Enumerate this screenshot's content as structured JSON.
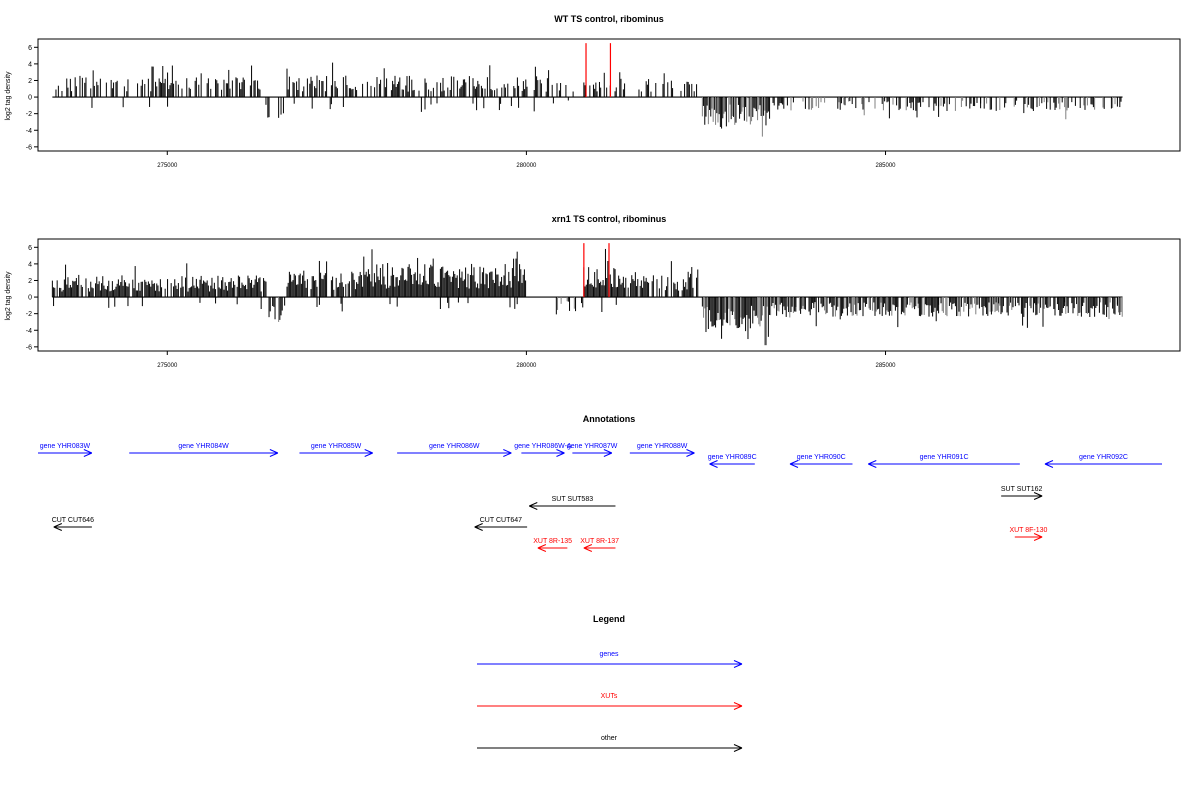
{
  "colors": {
    "gene": "#0000ff",
    "xut": "#ff0000",
    "other": "#000000",
    "bar": "#000000",
    "bar_light": "#808080",
    "highlight": "#ff0000",
    "frame": "#000000"
  },
  "chart_data": [
    {
      "type": "bar",
      "title": "WT TS control, ribominus",
      "ylabel": "log2 tag density",
      "xlim": [
        273200,
        289100
      ],
      "ylim": [
        -6.5,
        7
      ],
      "yticks": [
        -6,
        -4,
        -2,
        0,
        2,
        4,
        6
      ],
      "xticks": [
        275000,
        280000,
        285000
      ],
      "grid": false,
      "data_range": [
        273400,
        288300
      ],
      "density_note": "approximate profile; positive signal 273.4k-282.4k, negative signal 282.4k-288.3k",
      "segments": [
        {
          "from": 273400,
          "to": 276400,
          "sign": 1,
          "dens": 0.45,
          "amp": 2.4,
          "neg_dens": 0.05,
          "neg_amp": 1.8
        },
        {
          "from": 276400,
          "to": 276650,
          "sign": -1,
          "dens": 0.35,
          "amp": 2.6,
          "neg_dens": 0,
          "neg_amp": 0
        },
        {
          "from": 276650,
          "to": 280500,
          "sign": 1,
          "dens": 0.55,
          "amp": 2.6,
          "neg_dens": 0.05,
          "neg_amp": 1.8
        },
        {
          "from": 280500,
          "to": 280800,
          "sign": 1,
          "dens": 0.05,
          "amp": 1.5,
          "neg_dens": 0.05,
          "neg_amp": 1.0
        },
        {
          "from": 280800,
          "to": 281300,
          "sign": 1,
          "dens": 0.5,
          "amp": 2.6,
          "neg_dens": 0,
          "neg_amp": 0
        },
        {
          "from": 281300,
          "to": 282400,
          "sign": 1,
          "dens": 0.35,
          "amp": 2.0,
          "neg_dens": 0,
          "neg_amp": 0
        },
        {
          "from": 282450,
          "to": 283400,
          "sign": -1,
          "dens": 0.9,
          "amp": 3.6,
          "neg_dens": 0,
          "neg_amp": 0
        },
        {
          "from": 283400,
          "to": 288300,
          "sign": -1,
          "dens": 0.4,
          "amp": 1.7,
          "neg_dens": 0.03,
          "neg_amp": 1.5
        }
      ],
      "highlights": [
        {
          "x": 280830,
          "y": 6.5
        },
        {
          "x": 281170,
          "y": 6.5
        }
      ]
    },
    {
      "type": "bar",
      "title": "xrn1 TS control, ribominus",
      "ylabel": "log2 tag density",
      "xlim": [
        273200,
        289100
      ],
      "ylim": [
        -6.5,
        7
      ],
      "yticks": [
        -6,
        -4,
        -2,
        0,
        2,
        4,
        6
      ],
      "xticks": [
        275000,
        280000,
        285000
      ],
      "grid": false,
      "data_range": [
        273400,
        288300
      ],
      "density_note": "approximate profile; dense positive signal 273.4k-282.4k, dense negative signal 282.4k-288.3k",
      "segments": [
        {
          "from": 273400,
          "to": 276400,
          "sign": 1,
          "dens": 0.85,
          "amp": 2.6,
          "neg_dens": 0.03,
          "neg_amp": 1.5
        },
        {
          "from": 276400,
          "to": 276650,
          "sign": -1,
          "dens": 0.6,
          "amp": 3.2,
          "neg_dens": 0,
          "neg_amp": 0
        },
        {
          "from": 276650,
          "to": 277800,
          "sign": 1,
          "dens": 0.9,
          "amp": 3.2,
          "neg_dens": 0.08,
          "neg_amp": 2.0
        },
        {
          "from": 277800,
          "to": 280000,
          "sign": 1,
          "dens": 1.0,
          "amp": 4.0,
          "neg_dens": 0.03,
          "neg_amp": 1.5
        },
        {
          "from": 280350,
          "to": 280800,
          "sign": -1,
          "dens": 0.35,
          "amp": 2.0,
          "neg_dens": 0,
          "neg_amp": 0
        },
        {
          "from": 280800,
          "to": 281300,
          "sign": 1,
          "dens": 1.0,
          "amp": 4.5,
          "neg_dens": 0.15,
          "neg_amp": 2.0
        },
        {
          "from": 281300,
          "to": 282400,
          "sign": 1,
          "dens": 0.7,
          "amp": 2.8,
          "neg_dens": 0,
          "neg_amp": 0
        },
        {
          "from": 282450,
          "to": 283400,
          "sign": -1,
          "dens": 1.0,
          "amp": 4.2,
          "neg_dens": 0,
          "neg_amp": 0
        },
        {
          "from": 283400,
          "to": 288300,
          "sign": -1,
          "dens": 0.85,
          "amp": 2.4,
          "neg_dens": 0.05,
          "neg_amp": 1.2
        }
      ],
      "highlights": [
        {
          "x": 280800,
          "y": 6.5
        },
        {
          "x": 281150,
          "y": 6.5
        }
      ]
    }
  ],
  "annotations": {
    "title": "Annotations",
    "features": [
      {
        "label": "gene YHR083W",
        "kind": "gene",
        "strand": "+",
        "start": 273200,
        "end": 273950,
        "row": 0
      },
      {
        "label": "gene YHR084W",
        "kind": "gene",
        "strand": "+",
        "start": 274470,
        "end": 276540,
        "row": 0
      },
      {
        "label": "gene YHR085W",
        "kind": "gene",
        "strand": "+",
        "start": 276840,
        "end": 277860,
        "row": 0
      },
      {
        "label": "gene YHR086W",
        "kind": "gene",
        "strand": "+",
        "start": 278200,
        "end": 279790,
        "row": 0
      },
      {
        "label": "gene YHR086W-A",
        "kind": "gene",
        "strand": "+",
        "start": 279930,
        "end": 280530,
        "row": 0
      },
      {
        "label": "gene YHR087W",
        "kind": "gene",
        "strand": "+",
        "start": 280640,
        "end": 281190,
        "row": 0
      },
      {
        "label": "gene YHR088W",
        "kind": "gene",
        "strand": "+",
        "start": 281440,
        "end": 282340,
        "row": 0
      },
      {
        "label": "gene YHR089C",
        "kind": "gene",
        "strand": "-",
        "start": 282550,
        "end": 283180,
        "row": 1
      },
      {
        "label": "gene YHR090C",
        "kind": "gene",
        "strand": "-",
        "start": 283670,
        "end": 284540,
        "row": 1
      },
      {
        "label": "gene YHR091C",
        "kind": "gene",
        "strand": "-",
        "start": 284760,
        "end": 286870,
        "row": 1
      },
      {
        "label": "gene YHR092C",
        "kind": "gene",
        "strand": "-",
        "start": 287220,
        "end": 288920,
        "row": 1
      },
      {
        "label": "SUT SUT583",
        "kind": "other",
        "strand": "-",
        "start": 280040,
        "end": 281240,
        "row": 2
      },
      {
        "label": "SUT SUT162",
        "kind": "other",
        "strand": "+",
        "start": 286610,
        "end": 287180,
        "row": 3
      },
      {
        "label": "CUT CUT646",
        "kind": "other",
        "strand": "-",
        "start": 273420,
        "end": 273950,
        "row": 4
      },
      {
        "label": "CUT CUT647",
        "kind": "other",
        "strand": "-",
        "start": 279280,
        "end": 280010,
        "row": 4
      },
      {
        "label": "XUT 8R-135",
        "kind": "xut",
        "strand": "-",
        "start": 280160,
        "end": 280570,
        "row": 5
      },
      {
        "label": "XUT 8R-137",
        "kind": "xut",
        "strand": "-",
        "start": 280800,
        "end": 281240,
        "row": 5
      },
      {
        "label": "XUT 8F-130",
        "kind": "xut",
        "strand": "+",
        "start": 286800,
        "end": 287180,
        "row": 6
      }
    ]
  },
  "legend": {
    "title": "Legend",
    "items": [
      {
        "label": "genes",
        "kind": "gene"
      },
      {
        "label": "XUTs",
        "kind": "xut"
      },
      {
        "label": "other",
        "kind": "other"
      }
    ]
  }
}
